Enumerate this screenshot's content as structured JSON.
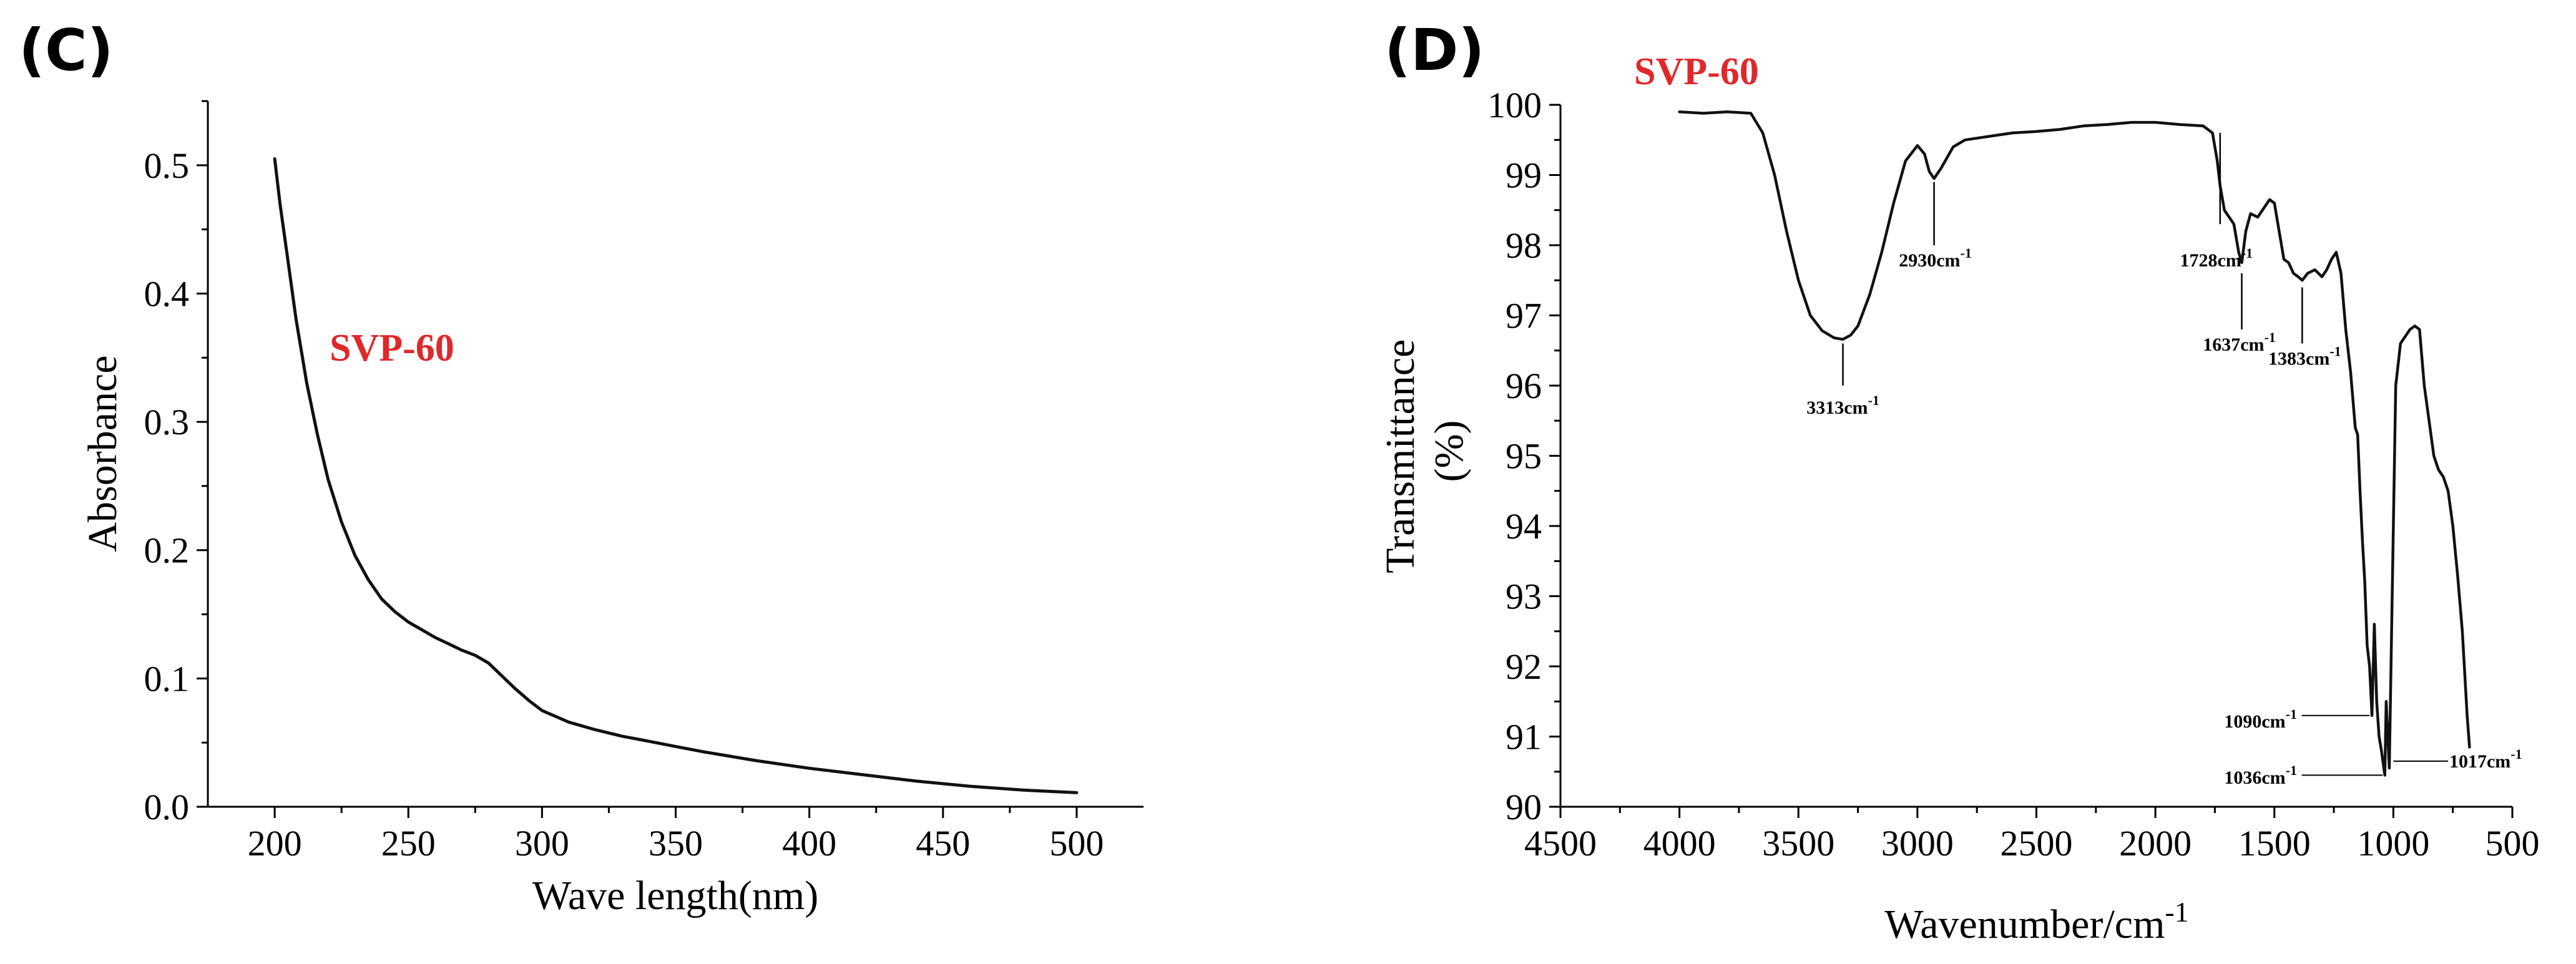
{
  "colors": {
    "curve": "#111111",
    "axis": "#000000",
    "sample_label": "#e0282b"
  },
  "chart_data": [
    {
      "panel": "(C)",
      "type": "line",
      "title": "",
      "sample_label": "SVP-60",
      "xlabel": "Wave length(nm)",
      "ylabel": "Absorbance",
      "xlim": [
        175,
        525
      ],
      "ylim": [
        0,
        0.55
      ],
      "xticks": [
        200,
        250,
        300,
        350,
        400,
        450,
        500
      ],
      "yticks": [
        0.0,
        0.1,
        0.2,
        0.3,
        0.4,
        0.5
      ],
      "yticks_text": [
        "0.0",
        "0.1",
        "0.2",
        "0.3",
        "0.4",
        "0.5"
      ],
      "grid": false,
      "series": [
        {
          "name": "SVP-60",
          "x": [
            200,
            202,
            205,
            208,
            212,
            216,
            220,
            225,
            230,
            235,
            240,
            245,
            250,
            255,
            260,
            265,
            270,
            275,
            280,
            285,
            290,
            295,
            300,
            310,
            320,
            330,
            340,
            350,
            360,
            380,
            400,
            420,
            440,
            460,
            480,
            500
          ],
          "y": [
            0.505,
            0.47,
            0.425,
            0.38,
            0.33,
            0.29,
            0.255,
            0.222,
            0.196,
            0.177,
            0.162,
            0.152,
            0.144,
            0.138,
            0.132,
            0.127,
            0.122,
            0.118,
            0.112,
            0.102,
            0.092,
            0.083,
            0.075,
            0.066,
            0.06,
            0.055,
            0.051,
            0.047,
            0.043,
            0.036,
            0.03,
            0.025,
            0.02,
            0.016,
            0.013,
            0.011
          ]
        }
      ]
    },
    {
      "panel": "(D)",
      "type": "line",
      "title": "",
      "sample_label": "SVP-60",
      "xlabel": "Wavenumber/cm",
      "xlabel_sup": "-1",
      "ylabel_line1": "Transmittance",
      "ylabel_line2": "(%)",
      "xlim": [
        4500,
        500
      ],
      "ylim": [
        90,
        100
      ],
      "xticks": [
        4500,
        4000,
        3500,
        3000,
        2500,
        2000,
        1500,
        1000,
        500
      ],
      "yticks": [
        90,
        91,
        92,
        93,
        94,
        95,
        96,
        97,
        98,
        99,
        100
      ],
      "grid": false,
      "series": [
        {
          "name": "SVP-60",
          "x": [
            4000,
            3900,
            3800,
            3700,
            3650,
            3600,
            3550,
            3500,
            3450,
            3400,
            3350,
            3313,
            3280,
            3250,
            3200,
            3150,
            3100,
            3050,
            3000,
            2970,
            2950,
            2930,
            2900,
            2850,
            2800,
            2700,
            2600,
            2500,
            2400,
            2300,
            2200,
            2100,
            2000,
            1900,
            1800,
            1760,
            1740,
            1728,
            1710,
            1690,
            1670,
            1650,
            1637,
            1620,
            1600,
            1570,
            1540,
            1520,
            1500,
            1480,
            1460,
            1440,
            1420,
            1400,
            1383,
            1360,
            1330,
            1300,
            1280,
            1260,
            1240,
            1220,
            1200,
            1180,
            1170,
            1160,
            1150,
            1140,
            1130,
            1120,
            1110,
            1100,
            1090,
            1080,
            1070,
            1060,
            1050,
            1040,
            1036,
            1030,
            1017,
            1005,
            990,
            970,
            950,
            930,
            910,
            890,
            870,
            850,
            830,
            810,
            790,
            770,
            750,
            730,
            710,
            690,
            680
          ],
          "y": [
            99.9,
            99.88,
            99.9,
            99.88,
            99.6,
            99.0,
            98.2,
            97.5,
            97.0,
            96.78,
            96.68,
            96.66,
            96.72,
            96.85,
            97.3,
            97.9,
            98.6,
            99.2,
            99.42,
            99.3,
            99.05,
            98.95,
            99.1,
            99.4,
            99.5,
            99.55,
            99.6,
            99.62,
            99.65,
            99.7,
            99.72,
            99.75,
            99.75,
            99.72,
            99.7,
            99.6,
            99.2,
            98.85,
            98.5,
            98.4,
            98.3,
            97.9,
            97.75,
            98.2,
            98.45,
            98.4,
            98.55,
            98.65,
            98.6,
            98.2,
            97.8,
            97.75,
            97.6,
            97.55,
            97.5,
            97.6,
            97.65,
            97.55,
            97.65,
            97.8,
            97.9,
            97.6,
            96.8,
            96.2,
            95.8,
            95.4,
            95.3,
            94.5,
            93.8,
            93.2,
            92.3,
            92.0,
            91.3,
            92.6,
            91.5,
            91.0,
            90.8,
            90.55,
            90.45,
            91.5,
            90.55,
            93.0,
            96.0,
            96.6,
            96.7,
            96.8,
            96.85,
            96.8,
            96.0,
            95.5,
            95.0,
            94.8,
            94.7,
            94.5,
            94.0,
            93.3,
            92.5,
            91.3,
            90.85
          ]
        }
      ],
      "annotations": [
        {
          "text": "3313cm",
          "sup": "-1",
          "x": 3313
        },
        {
          "text": "2930cm",
          "sup": "-1",
          "x": 2930
        },
        {
          "text": "1728cm",
          "sup": "-1",
          "x": 1728
        },
        {
          "text": "1637cm",
          "sup": "-1",
          "x": 1637
        },
        {
          "text": "1383cm",
          "sup": "-1",
          "x": 1383
        },
        {
          "text": "1090cm",
          "sup": "-1",
          "x": 1090
        },
        {
          "text": "1036cm",
          "sup": "-1",
          "x": 1036
        },
        {
          "text": "1017cm",
          "sup": "-1",
          "x": 1017
        }
      ]
    }
  ]
}
